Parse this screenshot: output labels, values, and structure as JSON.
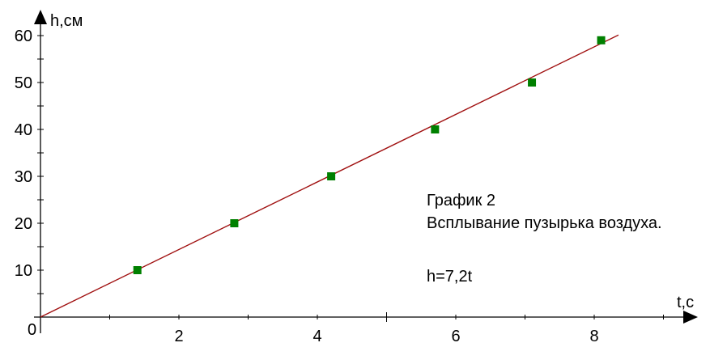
{
  "chart_data": {
    "type": "scatter",
    "xlabel": "t,c",
    "ylabel": "h,см",
    "origin_label": "0",
    "xlim": [
      0,
      9.5
    ],
    "ylim": [
      0,
      62
    ],
    "x_ticks": [
      2,
      4,
      6,
      8
    ],
    "x_tick_labels": [
      "2",
      "4",
      "6",
      "8"
    ],
    "y_ticks": [
      10,
      20,
      30,
      40,
      50,
      60
    ],
    "y_tick_labels": [
      "10",
      "20",
      "30",
      "40",
      "50",
      "60"
    ],
    "grid": false,
    "points": {
      "x": [
        1.4,
        2.8,
        4.2,
        5.7,
        7.1,
        8.1
      ],
      "y": [
        10,
        20,
        30,
        40,
        50,
        59
      ]
    },
    "fit_line": {
      "equation": "h=7,2t",
      "slope": 7.2,
      "x_range": [
        0,
        8.35
      ]
    },
    "annotation": {
      "line1": "График 2",
      "line2": "Всплывание пузырька воздуха.",
      "line3": "h=7,2t"
    },
    "colors": {
      "point": "#008000",
      "line": "#a01010",
      "axis": "#000000"
    }
  }
}
